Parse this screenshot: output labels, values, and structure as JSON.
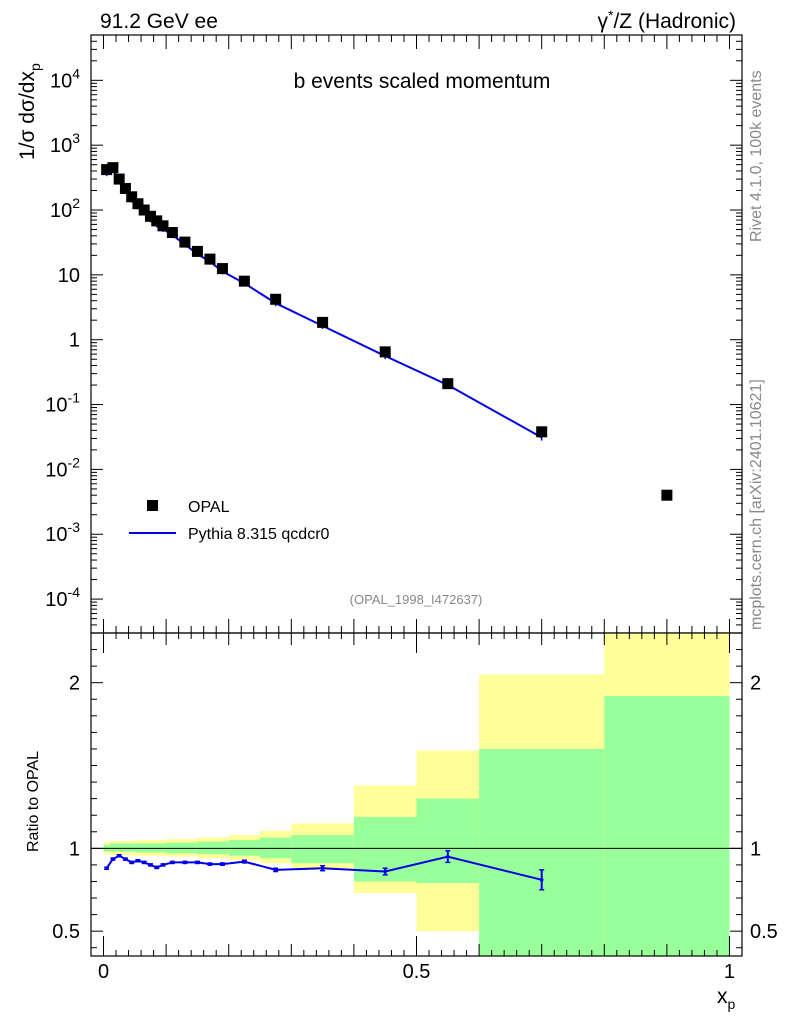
{
  "header": {
    "left": "91.2 GeV ee",
    "right_prefix": "γ",
    "right_sup": "*",
    "right_suffix": "/Z (Hadronic)"
  },
  "side": {
    "rivet": "Rivet 4.1.0,  100k events",
    "mcplots": "mcplots.cern.ch [arXiv:2401.10621]"
  },
  "colors": {
    "mc": "#0000e6",
    "data": "#000000",
    "band_inner": "#99ff99",
    "band_outer": "#ffff99"
  },
  "chart_data": [
    {
      "type": "scatter",
      "title": "b events scaled momentum",
      "ylabel_prefix": "1/σ   dσ/dx",
      "ylabel_sub": "p",
      "yscale": "log",
      "ylim": [
        3e-05,
        50000
      ],
      "xlim": [
        -0.02,
        1.02
      ],
      "ytick_labels": [
        {
          "value": 0.0001,
          "base": "10",
          "exp": "-4"
        },
        {
          "value": 0.001,
          "base": "10",
          "exp": "-3"
        },
        {
          "value": 0.01,
          "base": "10",
          "exp": "-2"
        },
        {
          "value": 0.1,
          "base": "10",
          "exp": "-1"
        },
        {
          "value": 1,
          "base": "1",
          "exp": ""
        },
        {
          "value": 10,
          "base": "10",
          "exp": ""
        },
        {
          "value": 100,
          "base": "10",
          "exp": "2"
        },
        {
          "value": 1000,
          "base": "10",
          "exp": "3"
        },
        {
          "value": 10000,
          "base": "10",
          "exp": "4"
        }
      ],
      "legend": [
        {
          "label": "OPAL",
          "style": "marker"
        },
        {
          "label": "Pythia 8.315 qcdcr0",
          "style": "line"
        }
      ],
      "annotation": "(OPAL_1998_I472637)",
      "series": [
        {
          "name": "OPAL",
          "x": [
            0.005,
            0.015,
            0.025,
            0.035,
            0.045,
            0.055,
            0.065,
            0.075,
            0.085,
            0.095,
            0.11,
            0.13,
            0.15,
            0.17,
            0.19,
            0.225,
            0.275,
            0.35,
            0.45,
            0.55,
            0.7,
            0.9
          ],
          "y": [
            420,
            450,
            300,
            215,
            160,
            125,
            100,
            80,
            68,
            57,
            45,
            32,
            23,
            17.5,
            12.5,
            8.0,
            4.2,
            1.85,
            0.65,
            0.21,
            0.038,
            0.004
          ]
        },
        {
          "name": "Pythia 8.315 qcdcr0",
          "x": [
            0.005,
            0.015,
            0.025,
            0.035,
            0.045,
            0.055,
            0.065,
            0.075,
            0.085,
            0.095,
            0.11,
            0.13,
            0.15,
            0.17,
            0.19,
            0.225,
            0.275,
            0.35,
            0.45,
            0.55,
            0.7
          ],
          "y": [
            370,
            420,
            285,
            200,
            145,
            115,
            92,
            72,
            60,
            51,
            41,
            29.5,
            21,
            16,
            11.3,
            7.4,
            3.65,
            1.63,
            0.56,
            0.2,
            0.031
          ]
        }
      ]
    },
    {
      "type": "line",
      "ylabel": "Ratio to OPAL",
      "xlabel_base": "x",
      "xlabel_sub": "p",
      "ylim": [
        0.35,
        2.3
      ],
      "xlim": [
        -0.02,
        1.02
      ],
      "xticks": [
        0,
        0.5,
        1
      ],
      "xtick_labels": [
        "0",
        "0.5",
        "1"
      ],
      "yticks": [
        0.5,
        1,
        2
      ],
      "ytick_labels": [
        "0.5",
        "1",
        "2"
      ],
      "bands": [
        {
          "x0": 0.0,
          "x1": 0.01,
          "inner": [
            0.98,
            1.02
          ],
          "outer": [
            0.965,
            1.035
          ]
        },
        {
          "x0": 0.01,
          "x1": 0.05,
          "inner": [
            0.98,
            1.03
          ],
          "outer": [
            0.96,
            1.045
          ]
        },
        {
          "x0": 0.05,
          "x1": 0.1,
          "inner": [
            0.975,
            1.03
          ],
          "outer": [
            0.955,
            1.05
          ]
        },
        {
          "x0": 0.1,
          "x1": 0.15,
          "inner": [
            0.97,
            1.035
          ],
          "outer": [
            0.95,
            1.055
          ]
        },
        {
          "x0": 0.15,
          "x1": 0.2,
          "inner": [
            0.965,
            1.04
          ],
          "outer": [
            0.94,
            1.065
          ]
        },
        {
          "x0": 0.2,
          "x1": 0.25,
          "inner": [
            0.955,
            1.05
          ],
          "outer": [
            0.93,
            1.08
          ]
        },
        {
          "x0": 0.25,
          "x1": 0.3,
          "inner": [
            0.94,
            1.065
          ],
          "outer": [
            0.91,
            1.105
          ]
        },
        {
          "x0": 0.3,
          "x1": 0.4,
          "inner": [
            0.91,
            1.08
          ],
          "outer": [
            0.87,
            1.15
          ]
        },
        {
          "x0": 0.4,
          "x1": 0.5,
          "inner": [
            0.8,
            1.19
          ],
          "outer": [
            0.73,
            1.38
          ]
        },
        {
          "x0": 0.5,
          "x1": 0.6,
          "inner": [
            0.79,
            1.3
          ],
          "outer": [
            0.5,
            1.59
          ]
        },
        {
          "x0": 0.6,
          "x1": 0.8,
          "inner": [
            0.35,
            1.6
          ],
          "outer": [
            0.35,
            2.05
          ]
        },
        {
          "x0": 0.8,
          "x1": 1.0,
          "inner": [
            0.35,
            1.92
          ],
          "outer": [
            0.35,
            2.3
          ]
        }
      ],
      "series": [
        {
          "name": "MC/Data",
          "x": [
            0.005,
            0.015,
            0.025,
            0.035,
            0.045,
            0.055,
            0.065,
            0.075,
            0.085,
            0.095,
            0.11,
            0.13,
            0.15,
            0.17,
            0.19,
            0.225,
            0.275,
            0.35,
            0.45,
            0.55,
            0.7
          ],
          "y": [
            0.88,
            0.935,
            0.955,
            0.935,
            0.915,
            0.925,
            0.915,
            0.9,
            0.885,
            0.9,
            0.915,
            0.915,
            0.915,
            0.905,
            0.905,
            0.92,
            0.87,
            0.88,
            0.86,
            0.95,
            0.81
          ],
          "err": [
            0.006,
            0.006,
            0.006,
            0.006,
            0.006,
            0.006,
            0.006,
            0.006,
            0.006,
            0.006,
            0.006,
            0.006,
            0.006,
            0.006,
            0.007,
            0.008,
            0.01,
            0.015,
            0.02,
            0.035,
            0.06
          ]
        }
      ]
    }
  ]
}
